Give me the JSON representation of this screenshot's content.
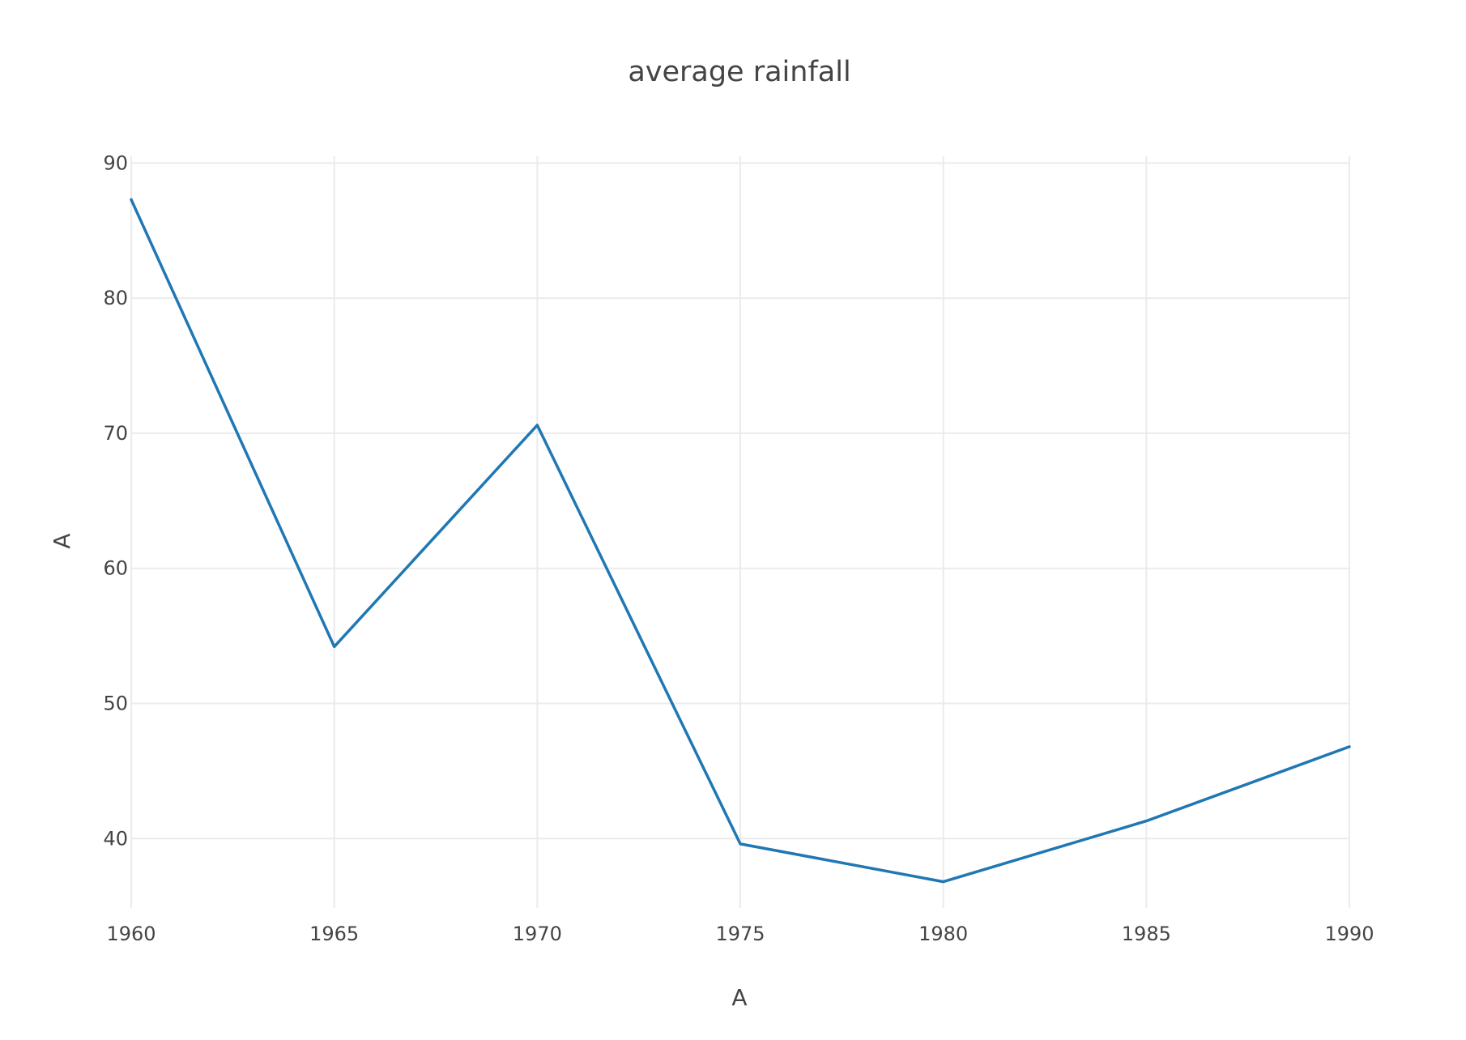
{
  "chart_data": {
    "type": "line",
    "title": "average rainfall",
    "xlabel": "A",
    "ylabel": "A",
    "x": [
      1960,
      1965,
      1970,
      1975,
      1980,
      1985,
      1990
    ],
    "series": [
      {
        "values": [
          87.3,
          54.2,
          70.6,
          39.6,
          36.8,
          41.3,
          46.8
        ],
        "color": "#1f77b4"
      }
    ],
    "xlim": [
      1960,
      1990
    ],
    "ylim": [
      34.5,
      90.5
    ],
    "x_ticks": [
      1960,
      1965,
      1970,
      1975,
      1980,
      1985,
      1990
    ],
    "y_ticks": [
      40,
      50,
      60,
      70,
      80,
      90
    ],
    "grid": true,
    "legend": "none"
  }
}
